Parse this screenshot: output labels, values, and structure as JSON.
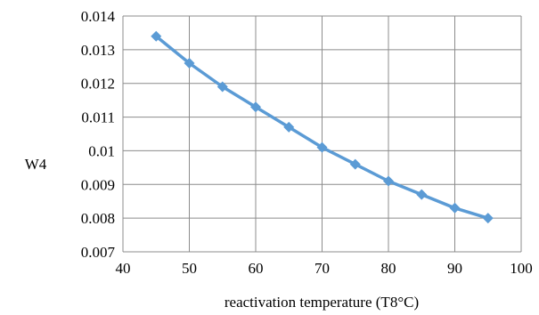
{
  "chart_data": {
    "type": "line",
    "title": "",
    "xlabel": "reactivation temperature (T8°C)",
    "ylabel": "W4",
    "xlim": [
      40,
      100
    ],
    "ylim": [
      0.007,
      0.014
    ],
    "x_ticks": [
      40,
      50,
      60,
      70,
      80,
      90,
      100
    ],
    "x_tick_labels": [
      "40",
      "50",
      "60",
      "70",
      "80",
      "90",
      "100"
    ],
    "y_ticks": [
      0.007,
      0.008,
      0.009,
      0.01,
      0.011,
      0.012,
      0.013,
      0.014
    ],
    "y_tick_labels": [
      "0.007",
      "0.008",
      "0.009",
      "0.01",
      "0.011",
      "0.012",
      "0.013",
      "0.014"
    ],
    "grid": true,
    "legend": "none",
    "series": [
      {
        "color": "#5b9bd5",
        "marker": "diamond",
        "x": [
          45,
          50,
          55,
          60,
          65,
          70,
          75,
          80,
          85,
          90,
          95
        ],
        "y": [
          0.0134,
          0.0126,
          0.0119,
          0.0113,
          0.0107,
          0.0101,
          0.0096,
          0.0091,
          0.0087,
          0.0083,
          0.008
        ]
      }
    ]
  }
}
